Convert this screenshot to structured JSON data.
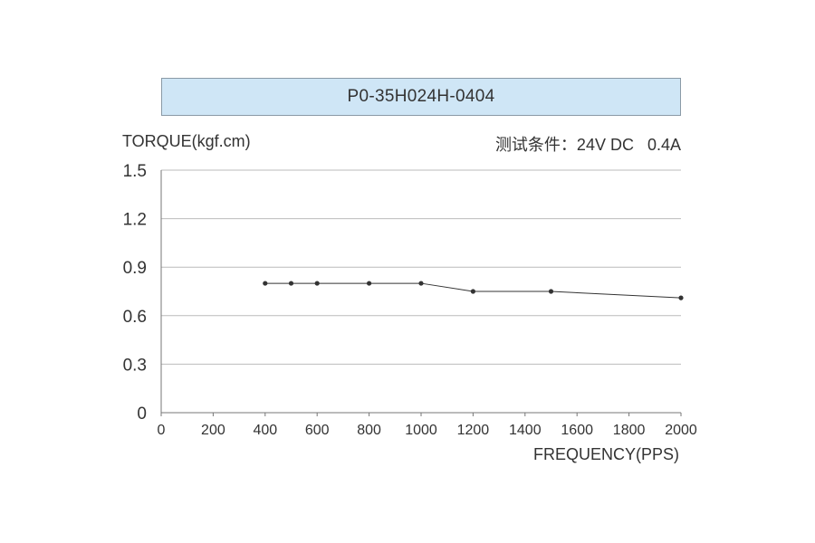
{
  "chart_data": {
    "type": "line",
    "title": "P0-35H024H-0404",
    "ylabel": "TORQUE(kgf.cm)",
    "xlabel": "FREQUENCY(PPS)",
    "conditions": "测试条件：24V DC   0.4A",
    "xlim": [
      0,
      2000
    ],
    "ylim": [
      0,
      1.5
    ],
    "x_ticks": [
      0,
      200,
      400,
      600,
      800,
      1000,
      1200,
      1400,
      1600,
      1800,
      2000
    ],
    "y_ticks": [
      0,
      0.3,
      0.6,
      0.9,
      1.2,
      1.5
    ],
    "y_tick_labels": [
      "0",
      "0.3",
      "0.6",
      "0.9",
      "1.2",
      "1.5"
    ],
    "grid": true,
    "series": [
      {
        "x": [
          400,
          500,
          600,
          800,
          1000,
          1200,
          1500,
          2000
        ],
        "y": [
          0.8,
          0.8,
          0.8,
          0.8,
          0.8,
          0.75,
          0.75,
          0.71
        ]
      }
    ],
    "colors": {
      "line": "#333333",
      "grid": "#bbbbbb",
      "title_bg": "#cfe6f6"
    }
  }
}
